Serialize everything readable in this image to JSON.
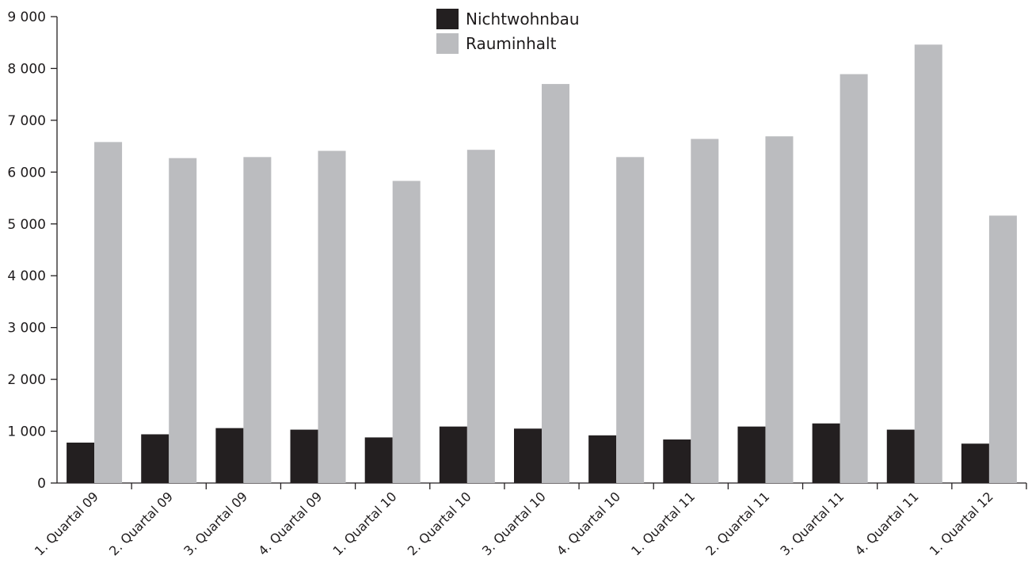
{
  "chart_data": {
    "type": "bar",
    "categories": [
      "1. Quartal 09",
      "2. Quartal 09",
      "3. Quartal 09",
      "4. Quartal 09",
      "1. Quartal 10",
      "2. Quartal 10",
      "3. Quartal 10",
      "4. Quartal 10",
      "1. Quartal 11",
      "2. Quartal 11",
      "3. Quartal 11",
      "4. Quartal 11",
      "1. Quartal 12"
    ],
    "series": [
      {
        "name": "Nichtwohnbau",
        "color": "#231f20",
        "values": [
          780,
          940,
          1060,
          1030,
          880,
          1090,
          1050,
          920,
          840,
          1090,
          1150,
          1030,
          760
        ]
      },
      {
        "name": "Rauminhalt",
        "color": "#bbbcbf",
        "values": [
          6580,
          6270,
          6290,
          6410,
          5830,
          6430,
          7700,
          6290,
          6640,
          6690,
          7890,
          8460,
          5160
        ]
      }
    ],
    "y_ticks": [
      "0",
      "1 000",
      "2 000",
      "3 000",
      "4 000",
      "5 000",
      "6 000",
      "7 000",
      "8 000",
      "9 000"
    ],
    "ylim": [
      0,
      9000
    ],
    "grid": false,
    "legend_position": "top-center"
  }
}
